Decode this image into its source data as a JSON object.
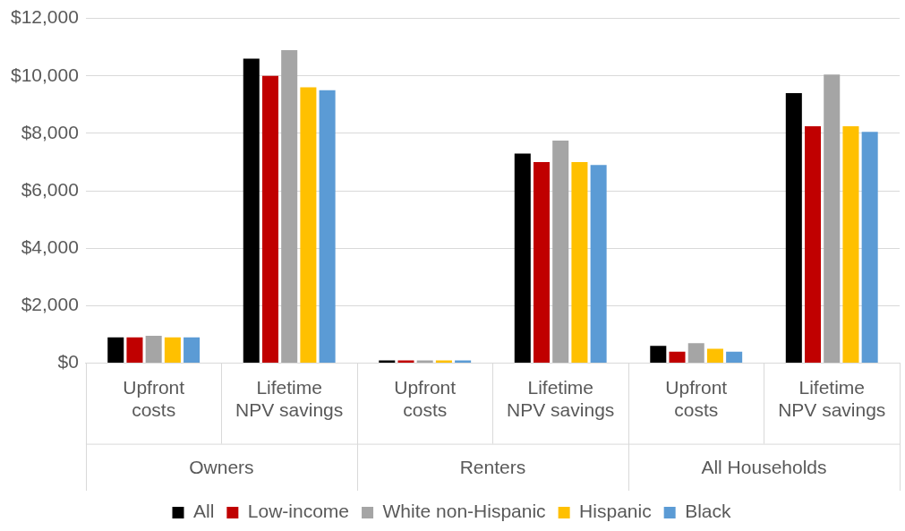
{
  "chart_data": {
    "type": "bar",
    "categories": [
      "Upfront costs",
      "Lifetime NPV savings",
      "Upfront costs",
      "Lifetime NPV savings",
      "Upfront costs",
      "Lifetime NPV savings"
    ],
    "annotations": [
      "Owners",
      "Renters",
      "All Households"
    ],
    "series": [
      {
        "name": "All",
        "color": "#000000",
        "values": [
          900,
          10600,
          100,
          7300,
          600,
          9400
        ]
      },
      {
        "name": "Low-income",
        "color": "#c00000",
        "values": [
          900,
          10000,
          100,
          7000,
          400,
          8250
        ]
      },
      {
        "name": "White non-Hispanic",
        "color": "#a5a5a5",
        "values": [
          950,
          10900,
          100,
          7750,
          700,
          10050
        ]
      },
      {
        "name": "Hispanic",
        "color": "#ffc000",
        "values": [
          900,
          9600,
          100,
          7000,
          500,
          8250
        ]
      },
      {
        "name": "Black",
        "color": "#5b9bd5",
        "values": [
          900,
          9500,
          100,
          6900,
          400,
          8050
        ]
      }
    ],
    "ylim": [
      0,
      12000
    ],
    "yticks": [
      {
        "value": 0,
        "label": "$0"
      },
      {
        "value": 2000,
        "label": "$2,000"
      },
      {
        "value": 4000,
        "label": "$4,000"
      },
      {
        "value": 6000,
        "label": "$6,000"
      },
      {
        "value": 8000,
        "label": "$8,000"
      },
      {
        "value": 10000,
        "label": "$10,000"
      },
      {
        "value": 12000,
        "label": "$12,000"
      }
    ],
    "grid": "y",
    "legend": "bottom"
  }
}
